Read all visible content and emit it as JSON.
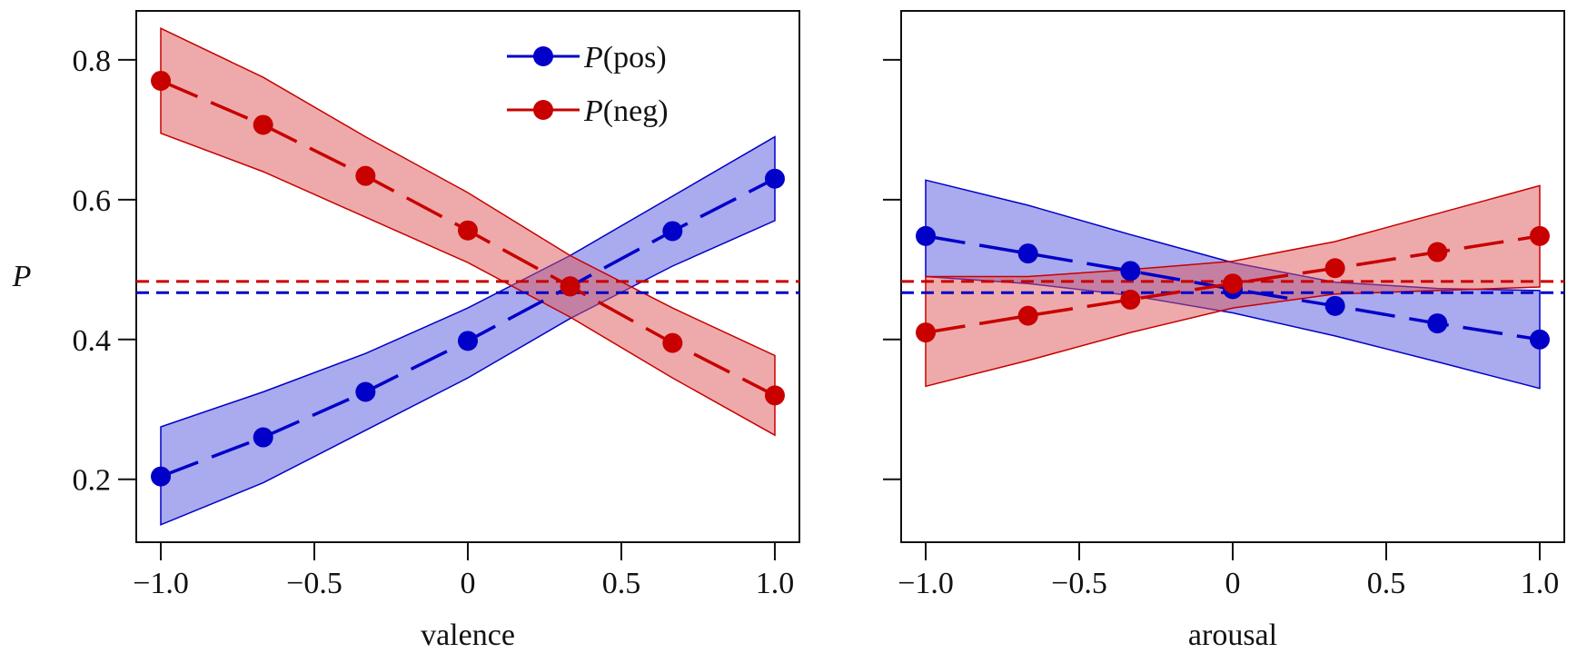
{
  "colors": {
    "pos": "#0000c8",
    "neg": "#c80000",
    "pos_fill": "#5555dd",
    "neg_fill": "#dd5555"
  },
  "ylabel": "P",
  "legend": {
    "placement": "top-right of left panel",
    "pos_symbol": "P",
    "pos_arg": "(pos)",
    "neg_symbol": "P",
    "neg_arg": "(neg)"
  },
  "chart_data": [
    {
      "type": "line",
      "xlabel": "valence",
      "ylabel": "P",
      "xlim": [
        -1.08,
        1.08
      ],
      "ylim": [
        0.11,
        0.87
      ],
      "xticks": [
        "−1.0",
        "−0.5",
        "0",
        "0.5",
        "1.0"
      ],
      "yticks": [
        "0.2",
        "0.4",
        "0.6",
        "0.8"
      ],
      "x": [
        -1.0,
        -0.6667,
        -0.3333,
        0.0,
        0.3333,
        0.6667,
        1.0
      ],
      "series": [
        {
          "name": "P(pos)",
          "values": [
            0.204,
            0.26,
            0.325,
            0.398,
            0.476,
            0.555,
            0.63
          ],
          "lower": [
            0.135,
            0.195,
            0.27,
            0.345,
            0.43,
            0.505,
            0.57
          ],
          "upper": [
            0.275,
            0.325,
            0.38,
            0.445,
            0.52,
            0.605,
            0.69
          ],
          "baseline": 0.467
        },
        {
          "name": "P(neg)",
          "values": [
            0.77,
            0.707,
            0.634,
            0.556,
            0.476,
            0.395,
            0.32
          ],
          "lower": [
            0.695,
            0.64,
            0.575,
            0.51,
            0.432,
            0.345,
            0.263
          ],
          "upper": [
            0.845,
            0.775,
            0.69,
            0.61,
            0.52,
            0.445,
            0.377
          ],
          "baseline": 0.483
        }
      ]
    },
    {
      "type": "line",
      "xlabel": "arousal",
      "ylabel": "",
      "xlim": [
        -1.08,
        1.08
      ],
      "ylim": [
        0.11,
        0.87
      ],
      "xticks": [
        "−1.0",
        "−0.5",
        "0",
        "0.5",
        "1.0"
      ],
      "yticks": [
        "",
        "",
        "",
        ""
      ],
      "x": [
        -1.0,
        -0.6667,
        -0.3333,
        0.0,
        0.3333,
        0.6667,
        1.0
      ],
      "series": [
        {
          "name": "P(pos)",
          "values": [
            0.548,
            0.523,
            0.498,
            0.472,
            0.448,
            0.423,
            0.4
          ],
          "lower": [
            0.49,
            0.48,
            0.463,
            0.438,
            0.405,
            0.368,
            0.33
          ],
          "upper": [
            0.628,
            0.592,
            0.55,
            0.51,
            0.482,
            0.473,
            0.47
          ],
          "baseline": 0.467
        },
        {
          "name": "P(neg)",
          "values": [
            0.41,
            0.434,
            0.457,
            0.48,
            0.502,
            0.525,
            0.548
          ],
          "lower": [
            0.333,
            0.37,
            0.41,
            0.445,
            0.465,
            0.47,
            0.475
          ],
          "upper": [
            0.49,
            0.49,
            0.5,
            0.512,
            0.54,
            0.58,
            0.62
          ],
          "baseline": 0.483
        }
      ]
    }
  ]
}
